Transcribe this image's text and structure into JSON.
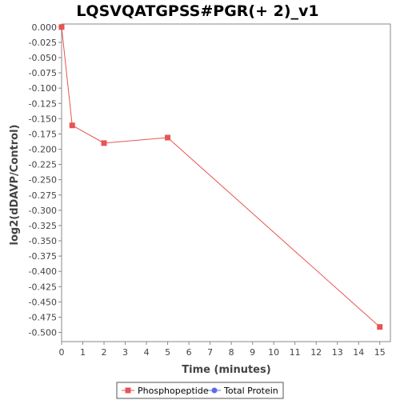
{
  "chart_data": {
    "type": "line",
    "title": "LQSVQATGPSS#PGR(+ 2)_v1",
    "xlabel": "Time (minutes)",
    "ylabel": "log2(dDAVP/Control)",
    "xlim": [
      0,
      15.5
    ],
    "ylim": [
      -0.515,
      0.0
    ],
    "x_ticks": [
      0,
      1,
      2,
      3,
      4,
      5,
      6,
      7,
      8,
      9,
      10,
      11,
      12,
      13,
      14,
      15
    ],
    "y_ticks": [
      0.0,
      -0.025,
      -0.05,
      -0.075,
      -0.1,
      -0.125,
      -0.15,
      -0.175,
      -0.2,
      -0.225,
      -0.25,
      -0.275,
      -0.3,
      -0.325,
      -0.35,
      -0.375,
      -0.4,
      -0.425,
      -0.45,
      -0.475,
      -0.5
    ],
    "y_tick_labels": [
      "0.000",
      "-0.025",
      "-0.050",
      "-0.075",
      "-0.100",
      "-0.125",
      "-0.150",
      "-0.175",
      "-0.200",
      "-0.225",
      "-0.250",
      "-0.275",
      "-0.300",
      "-0.325",
      "-0.350",
      "-0.375",
      "-0.400",
      "-0.425",
      "-0.450",
      "-0.475",
      "-0.500"
    ],
    "grid": false,
    "legend_position": "bottom",
    "series": [
      {
        "name": "Phosphopeptide",
        "color": "#e85454",
        "marker": "square",
        "x": [
          0,
          0.5,
          2,
          5,
          15
        ],
        "y": [
          0.0,
          -0.161,
          -0.19,
          -0.181,
          -0.491
        ]
      },
      {
        "name": "Total Protein",
        "color": "#5b6be8",
        "marker": "circle",
        "x": [],
        "y": []
      }
    ]
  }
}
